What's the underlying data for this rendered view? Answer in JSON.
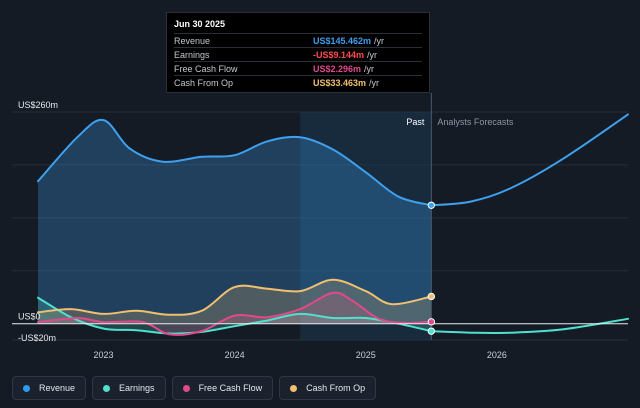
{
  "tooltip": {
    "date": "Jun 30 2025",
    "rows": [
      {
        "name": "Revenue",
        "value": "US$145.462m",
        "unit": "/yr",
        "color": "#3ea0f0"
      },
      {
        "name": "Earnings",
        "value": "-US$9.144m",
        "unit": "/yr",
        "color": "#ff4d4d"
      },
      {
        "name": "Free Cash Flow",
        "value": "US$2.296m",
        "unit": "/yr",
        "color": "#e0488f"
      },
      {
        "name": "Cash From Op",
        "value": "US$33.463m",
        "unit": "/yr",
        "color": "#f0c070"
      }
    ]
  },
  "region_labels": {
    "past": "Past",
    "forecast": "Analysts Forecasts"
  },
  "legend": [
    {
      "label": "Revenue",
      "color": "#2e9af0"
    },
    {
      "label": "Earnings",
      "color": "#4fe0d0"
    },
    {
      "label": "Free Cash Flow",
      "color": "#e04a8a"
    },
    {
      "label": "Cash From Op",
      "color": "#f0c070"
    }
  ],
  "chart_data": {
    "type": "line",
    "y_unit": "US$ m",
    "ylim": [
      -20,
      260
    ],
    "y_tick_labels": [
      "US$260m",
      "US$0",
      "-US$20m"
    ],
    "x_tick_labels": [
      "2023",
      "2024",
      "2025",
      "2026"
    ],
    "x_ticks": [
      2023.0,
      2024.0,
      2025.0,
      2026.0
    ],
    "xlim": [
      2022.5,
      2027.0
    ],
    "past_end": 2025.5,
    "highlight_start": 2024.5,
    "series": [
      {
        "name": "Revenue",
        "color": "#3ea0f0",
        "past": [
          [
            2022.5,
            175
          ],
          [
            2022.8,
            229
          ],
          [
            2023.0,
            250
          ],
          [
            2023.2,
            215
          ],
          [
            2023.45,
            199
          ],
          [
            2023.75,
            205
          ],
          [
            2024.0,
            207
          ],
          [
            2024.25,
            224
          ],
          [
            2024.5,
            229
          ],
          [
            2024.75,
            214
          ],
          [
            2025.0,
            186
          ],
          [
            2025.25,
            156
          ],
          [
            2025.5,
            145.462
          ]
        ],
        "forecast": [
          [
            2025.5,
            145.462
          ],
          [
            2025.8,
            150
          ],
          [
            2026.1,
            166
          ],
          [
            2026.5,
            202
          ],
          [
            2027.0,
            257
          ]
        ]
      },
      {
        "name": "Earnings",
        "color": "#4fe0d0",
        "past": [
          [
            2022.5,
            32
          ],
          [
            2022.75,
            8
          ],
          [
            2023.0,
            -6
          ],
          [
            2023.25,
            -8
          ],
          [
            2023.5,
            -12
          ],
          [
            2023.75,
            -10
          ],
          [
            2024.0,
            -3
          ],
          [
            2024.25,
            4
          ],
          [
            2024.5,
            12
          ],
          [
            2024.75,
            7
          ],
          [
            2025.0,
            7
          ],
          [
            2025.25,
            0
          ],
          [
            2025.5,
            -9.144
          ]
        ],
        "forecast": [
          [
            2025.5,
            -9.144
          ],
          [
            2025.8,
            -11
          ],
          [
            2026.1,
            -11
          ],
          [
            2026.5,
            -7
          ],
          [
            2027.0,
            6
          ]
        ]
      },
      {
        "name": "Free Cash Flow",
        "color": "#e04a8a",
        "past": [
          [
            2022.5,
            2
          ],
          [
            2022.8,
            7
          ],
          [
            2023.0,
            2
          ],
          [
            2023.3,
            2
          ],
          [
            2023.5,
            -13
          ],
          [
            2023.75,
            -9
          ],
          [
            2024.0,
            10
          ],
          [
            2024.25,
            8
          ],
          [
            2024.5,
            18
          ],
          [
            2024.75,
            38
          ],
          [
            2024.9,
            28
          ],
          [
            2025.1,
            6
          ],
          [
            2025.3,
            1
          ],
          [
            2025.5,
            2.296
          ]
        ]
      },
      {
        "name": "Cash From Op",
        "color": "#f0c070",
        "past": [
          [
            2022.5,
            14
          ],
          [
            2022.75,
            18
          ],
          [
            2023.0,
            12
          ],
          [
            2023.25,
            16
          ],
          [
            2023.5,
            11
          ],
          [
            2023.75,
            16
          ],
          [
            2024.0,
            45
          ],
          [
            2024.25,
            43
          ],
          [
            2024.5,
            40
          ],
          [
            2024.75,
            54
          ],
          [
            2025.0,
            40
          ],
          [
            2025.2,
            24
          ],
          [
            2025.5,
            33.463
          ]
        ]
      }
    ]
  }
}
